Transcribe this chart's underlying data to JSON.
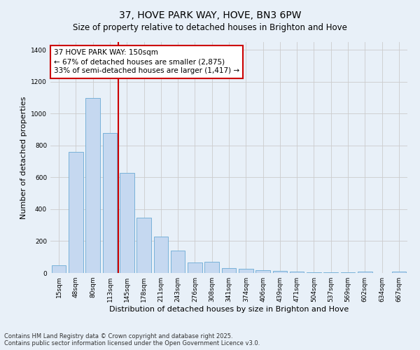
{
  "title": "37, HOVE PARK WAY, HOVE, BN3 6PW",
  "subtitle": "Size of property relative to detached houses in Brighton and Hove",
  "xlabel": "Distribution of detached houses by size in Brighton and Hove",
  "ylabel": "Number of detached properties",
  "categories": [
    "15sqm",
    "48sqm",
    "80sqm",
    "113sqm",
    "145sqm",
    "178sqm",
    "211sqm",
    "243sqm",
    "276sqm",
    "308sqm",
    "341sqm",
    "374sqm",
    "406sqm",
    "439sqm",
    "471sqm",
    "504sqm",
    "537sqm",
    "569sqm",
    "602sqm",
    "634sqm",
    "667sqm"
  ],
  "values": [
    50,
    760,
    1100,
    880,
    630,
    345,
    230,
    140,
    65,
    70,
    30,
    28,
    18,
    12,
    8,
    5,
    5,
    3,
    8,
    2,
    8
  ],
  "bar_color": "#c5d8f0",
  "bar_edge_color": "#6aaad4",
  "red_line_x": 3.5,
  "annotation_text": "37 HOVE PARK WAY: 150sqm\n← 67% of detached houses are smaller (2,875)\n33% of semi-detached houses are larger (1,417) →",
  "annotation_box_color": "#ffffff",
  "annotation_border_color": "#cc0000",
  "ylim": [
    0,
    1450
  ],
  "yticks": [
    0,
    200,
    400,
    600,
    800,
    1000,
    1200,
    1400
  ],
  "grid_color": "#cccccc",
  "background_color": "#e8f0f8",
  "footer_line1": "Contains HM Land Registry data © Crown copyright and database right 2025.",
  "footer_line2": "Contains public sector information licensed under the Open Government Licence v3.0.",
  "title_fontsize": 10,
  "subtitle_fontsize": 8.5,
  "xlabel_fontsize": 8,
  "ylabel_fontsize": 8,
  "tick_fontsize": 6.5,
  "footer_fontsize": 6,
  "annotation_fontsize": 7.5
}
